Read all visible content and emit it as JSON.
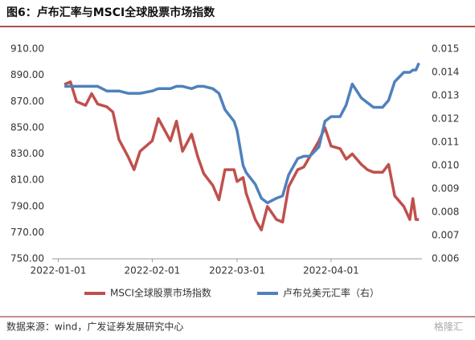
{
  "chart_data": {
    "type": "line",
    "title": "图6：卢布汇率与MSCI全球股票市场指数",
    "source": "数据来源：wind，广发证券发展研究中心",
    "watermark": "格隆汇",
    "x": [
      "2022-01-03",
      "2022-01-05",
      "2022-01-07",
      "2022-01-10",
      "2022-01-12",
      "2022-01-14",
      "2022-01-17",
      "2022-01-19",
      "2022-01-21",
      "2022-01-24",
      "2022-01-26",
      "2022-01-28",
      "2022-02-01",
      "2022-02-03",
      "2022-02-07",
      "2022-02-09",
      "2022-02-11",
      "2022-02-14",
      "2022-02-16",
      "2022-02-18",
      "2022-02-21",
      "2022-02-23",
      "2022-02-25",
      "2022-02-28",
      "2022-03-01",
      "2022-03-03",
      "2022-03-04",
      "2022-03-07",
      "2022-03-09",
      "2022-03-11",
      "2022-03-14",
      "2022-03-16",
      "2022-03-18",
      "2022-03-21",
      "2022-03-23",
      "2022-03-25",
      "2022-03-28",
      "2022-03-30",
      "2022-04-01",
      "2022-04-04",
      "2022-04-06",
      "2022-04-08",
      "2022-04-11",
      "2022-04-13",
      "2022-04-15",
      "2022-04-18",
      "2022-04-20",
      "2022-04-22",
      "2022-04-25",
      "2022-04-27",
      "2022-04-28",
      "2022-04-29",
      "2022-04-30"
    ],
    "series": [
      {
        "name": "MSCI全球股票市场指数",
        "color": "#c0504d",
        "axis": "y",
        "values": [
          883,
          885,
          870,
          867,
          876,
          868,
          866,
          862,
          841,
          828,
          818,
          832,
          840,
          857,
          840,
          855,
          832,
          845,
          828,
          815,
          806,
          795,
          818,
          818,
          809,
          812,
          800,
          780,
          772,
          790,
          780,
          778,
          805,
          818,
          820,
          828,
          840,
          850,
          836,
          834,
          826,
          830,
          822,
          818,
          816,
          816,
          822,
          798,
          790,
          780,
          796,
          780,
          780
        ]
      },
      {
        "name": "卢布兑美元汇率（右）",
        "color": "#4f81bd",
        "axis": "y2",
        "values": [
          0.0134,
          0.0134,
          0.0134,
          0.0134,
          0.0134,
          0.0134,
          0.0132,
          0.0132,
          0.0132,
          0.0131,
          0.0131,
          0.0131,
          0.0132,
          0.0133,
          0.0133,
          0.0134,
          0.0134,
          0.0133,
          0.0134,
          0.0134,
          0.0133,
          0.0131,
          0.0124,
          0.0119,
          0.0115,
          0.01,
          0.0097,
          0.0092,
          0.0086,
          0.0084,
          0.0086,
          0.0087,
          0.0096,
          0.0103,
          0.0104,
          0.0104,
          0.0108,
          0.0119,
          0.0121,
          0.0121,
          0.0126,
          0.0135,
          0.0129,
          0.0127,
          0.0125,
          0.0125,
          0.0128,
          0.0136,
          0.014,
          0.014,
          0.0141,
          0.0141,
          0.0144
        ]
      }
    ],
    "xlim": [
      "2021-12-30",
      "2022-05-01"
    ],
    "xticks": [
      "2022-01-01",
      "2022-02-01",
      "2022-03-01",
      "2022-04-01"
    ],
    "ylim": [
      750,
      910
    ],
    "yticks": [
      {
        "value": 750,
        "label": "750.00"
      },
      {
        "value": 770,
        "label": "770.00"
      },
      {
        "value": 790,
        "label": "790.00"
      },
      {
        "value": 810,
        "label": "810.00"
      },
      {
        "value": 830,
        "label": "830.00"
      },
      {
        "value": 850,
        "label": "850.00"
      },
      {
        "value": 870,
        "label": "870.00"
      },
      {
        "value": 890,
        "label": "890.00"
      },
      {
        "value": 910,
        "label": "910.00"
      }
    ],
    "y2lim": [
      0.006,
      0.015
    ],
    "y2ticks": [
      0.006,
      0.007,
      0.008,
      0.009,
      {
        "value": 0.01,
        "label": "0.010"
      },
      0.011,
      0.012,
      0.013,
      0.014,
      0.015
    ],
    "legend": "bottom"
  }
}
